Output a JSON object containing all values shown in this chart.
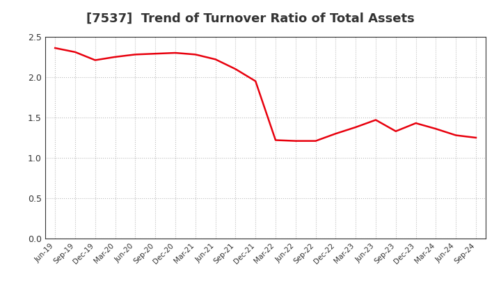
{
  "title": "[7537]  Trend of Turnover Ratio of Total Assets",
  "labels": [
    "Jun-19",
    "Sep-19",
    "Dec-19",
    "Mar-20",
    "Jun-20",
    "Sep-20",
    "Dec-20",
    "Mar-21",
    "Jun-21",
    "Sep-21",
    "Dec-21",
    "Mar-22",
    "Jun-22",
    "Sep-22",
    "Dec-22",
    "Mar-23",
    "Jun-23",
    "Sep-23",
    "Dec-23",
    "Mar-24",
    "Jun-24",
    "Sep-24"
  ],
  "values": [
    2.36,
    2.31,
    2.21,
    2.25,
    2.28,
    2.29,
    2.3,
    2.28,
    2.22,
    2.1,
    1.95,
    1.22,
    1.21,
    1.21,
    1.3,
    1.38,
    1.47,
    1.33,
    1.43,
    1.36,
    1.28,
    1.25
  ],
  "line_color": "#e8000d",
  "background_color": "#ffffff",
  "plot_bg_color": "#ffffff",
  "ylim": [
    0.0,
    2.5
  ],
  "yticks": [
    0.0,
    0.5,
    1.0,
    1.5,
    2.0,
    2.5
  ],
  "title_fontsize": 13,
  "grid_color": "#bbbbbb",
  "line_width": 1.8,
  "spine_color": "#333333"
}
